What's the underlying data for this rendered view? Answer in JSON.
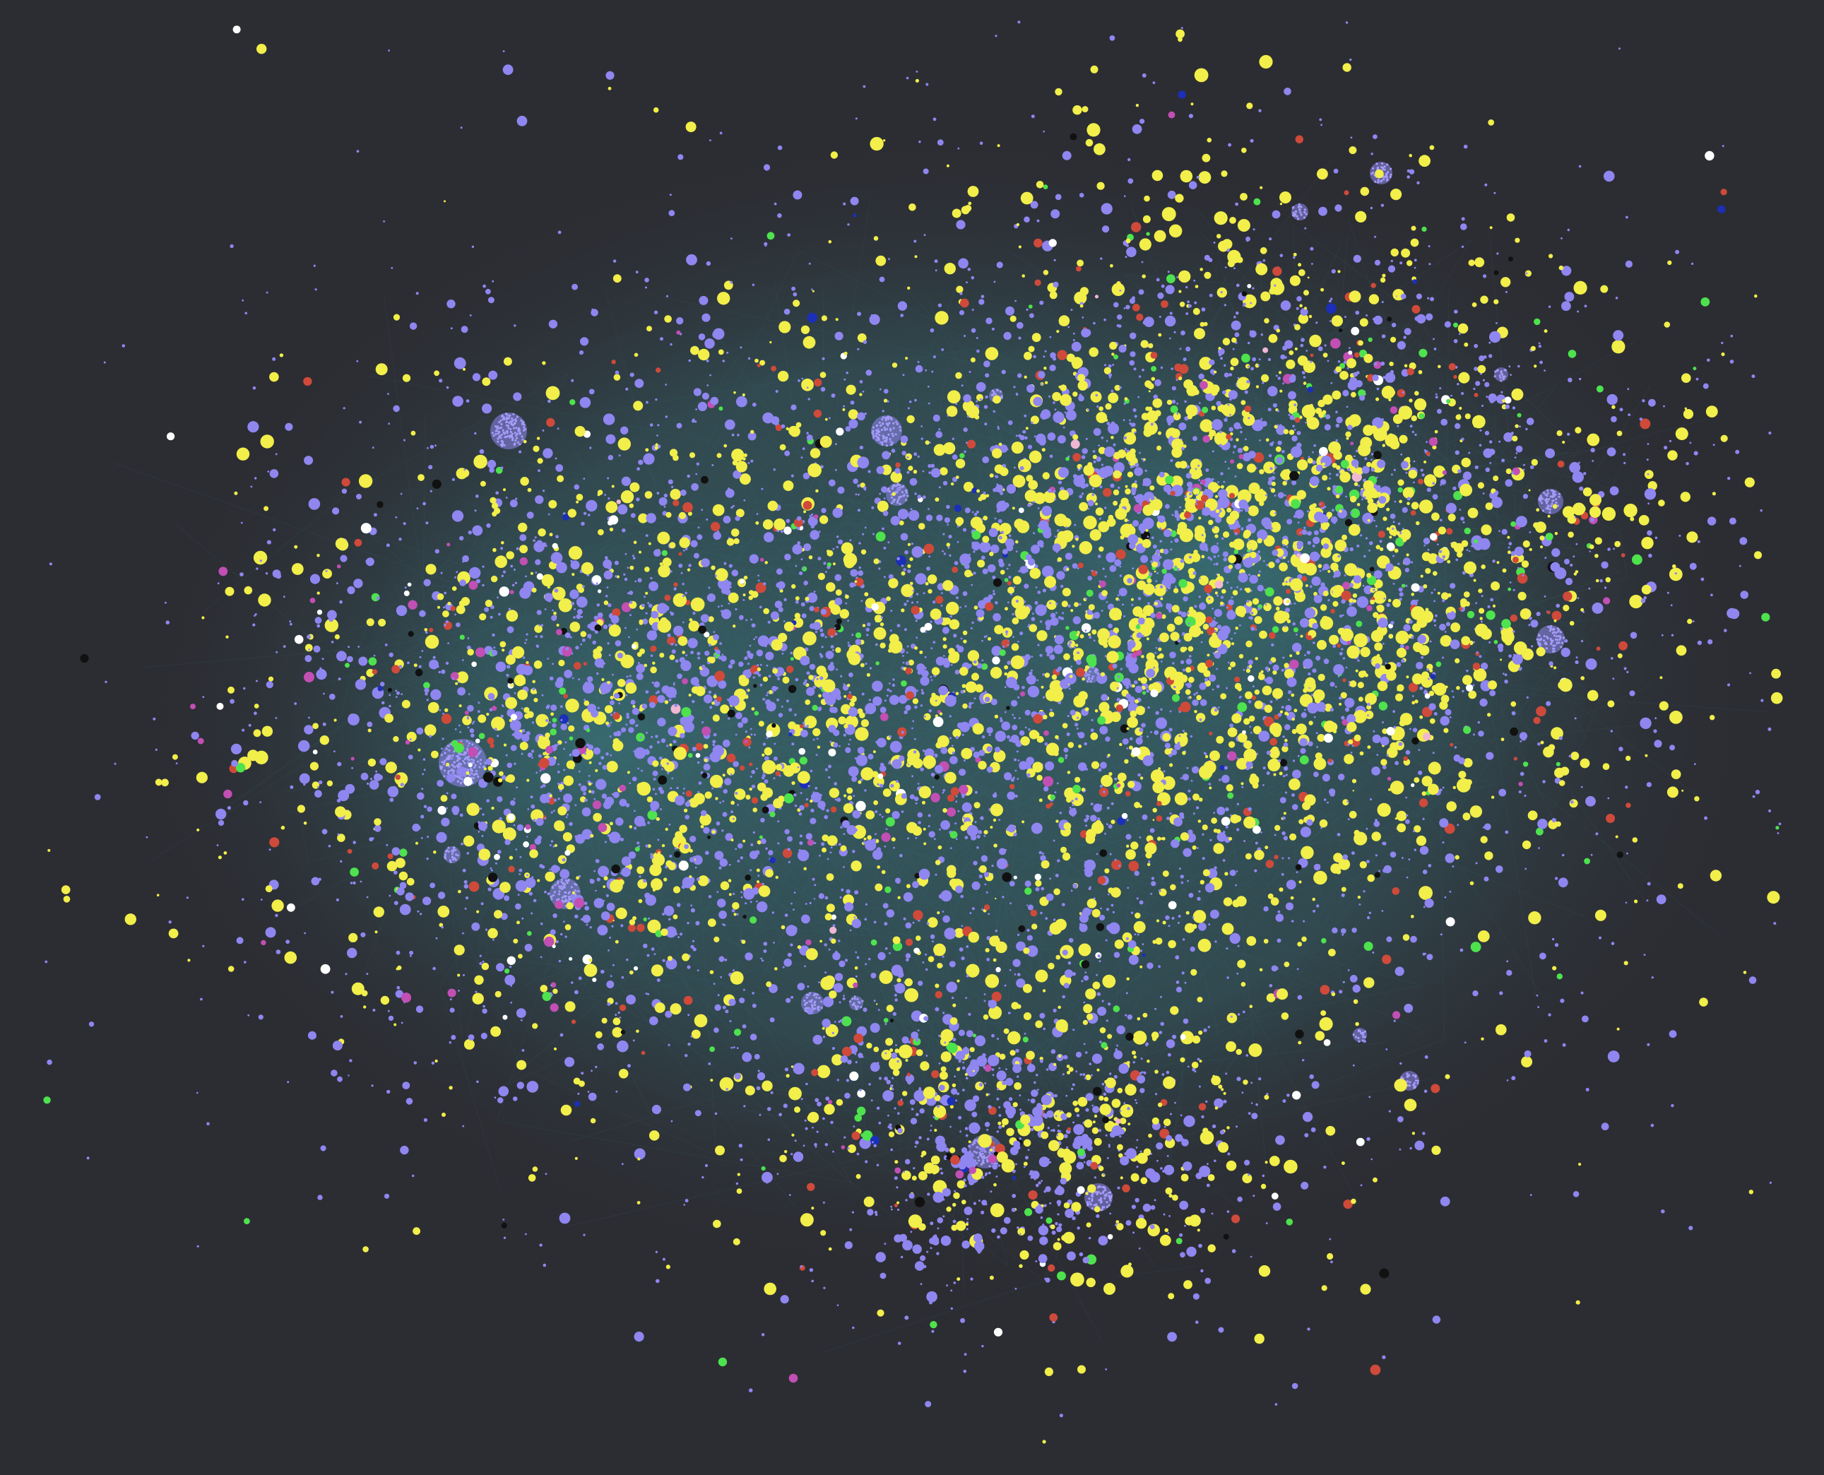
{
  "graph": {
    "background_color": "#2c2d33",
    "edge_color": "#3f8a8f",
    "node_categories": [
      {
        "name": "",
        "color": "#8f86f0",
        "share": 0.62
      },
      {
        "name": "",
        "color": "#f2ee4a",
        "share": 0.3
      },
      {
        "name": "",
        "color": "#cf4a3a",
        "share": 0.025
      },
      {
        "name": "",
        "color": "#4ee24e",
        "share": 0.02
      },
      {
        "name": "",
        "color": "#ffffff",
        "share": 0.01
      },
      {
        "name": "",
        "color": "#c24fb4",
        "share": 0.01
      },
      {
        "name": "",
        "color": "#111111",
        "share": 0.01
      },
      {
        "name": "",
        "color": "#1b2fb8",
        "share": 0.003
      },
      {
        "name": "",
        "color": "#f0b7d2",
        "share": 0.002
      }
    ]
  }
}
